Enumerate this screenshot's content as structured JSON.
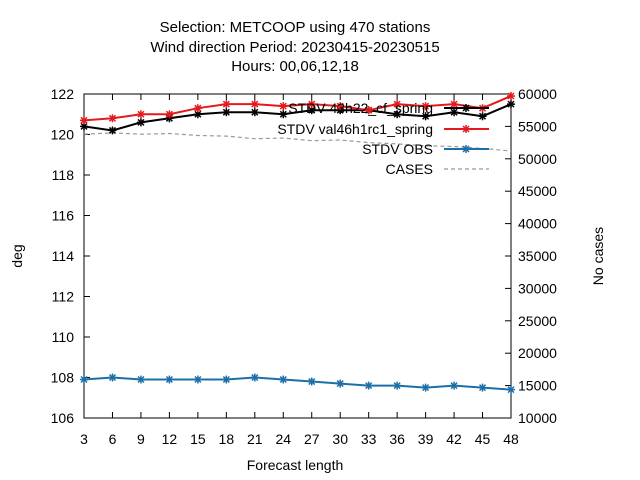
{
  "chart_data": {
    "type": "line",
    "title_lines": [
      "Selection: METCOOP using   470 stations",
      "Wind direction   Period: 20230415-20230515",
      "Hours:  00,06,12,18"
    ],
    "xlabel": "Forecast length",
    "ylabel": "deg",
    "y2label": "No cases",
    "x": [
      3,
      6,
      9,
      12,
      15,
      18,
      21,
      24,
      27,
      30,
      33,
      36,
      39,
      42,
      45,
      48
    ],
    "xlim": [
      3,
      48
    ],
    "ylim": [
      106,
      122
    ],
    "y2lim": [
      10000,
      60000
    ],
    "xticks": [
      3,
      6,
      9,
      12,
      15,
      18,
      21,
      24,
      27,
      30,
      33,
      36,
      39,
      42,
      45,
      48
    ],
    "yticks": [
      106,
      108,
      110,
      112,
      114,
      116,
      118,
      120,
      122
    ],
    "y2ticks": [
      10000,
      15000,
      20000,
      25000,
      30000,
      35000,
      40000,
      45000,
      50000,
      55000,
      60000
    ],
    "legend_position": "top-right",
    "series": [
      {
        "name": "STDV 43h22_cf_spring",
        "axis": "y",
        "color": "#000000",
        "style": "solid",
        "marker": "star",
        "values": [
          120.4,
          120.2,
          120.6,
          120.8,
          121.0,
          121.1,
          121.1,
          121.0,
          121.2,
          121.2,
          121.2,
          121.0,
          120.9,
          121.1,
          120.9,
          121.5
        ]
      },
      {
        "name": "STDV val46h1rc1_spring",
        "axis": "y",
        "color": "#e41a1c",
        "style": "solid",
        "marker": "star",
        "values": [
          120.7,
          120.8,
          121.0,
          121.0,
          121.3,
          121.5,
          121.5,
          121.4,
          121.5,
          121.4,
          121.2,
          121.5,
          121.4,
          121.5,
          121.3,
          121.9
        ]
      },
      {
        "name": "STDV OBS",
        "axis": "y",
        "color": "#1c6fa8",
        "style": "solid",
        "marker": "star",
        "values": [
          107.9,
          108.0,
          107.9,
          107.9,
          107.9,
          107.9,
          108.0,
          107.9,
          107.8,
          107.7,
          107.6,
          107.6,
          107.5,
          107.6,
          107.5,
          107.4
        ]
      },
      {
        "name": "CASES",
        "axis": "y2",
        "color": "#999999",
        "style": "dashed",
        "marker": "none",
        "values": [
          53800,
          54000,
          53800,
          53900,
          53600,
          53500,
          53100,
          53200,
          52800,
          52900,
          52500,
          52300,
          52000,
          51900,
          51600,
          51200
        ]
      }
    ]
  }
}
